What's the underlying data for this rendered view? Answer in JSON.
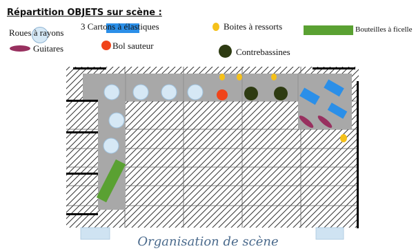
{
  "title": "Répartition OBJETS sur scène :",
  "caption": "Organisation de scène",
  "legend": {
    "roues": "Roues à rayons",
    "cartons": "3 Cartons à élastiques",
    "boites": "Boites à ressorts",
    "bouteilles": "Bouteilles à ficelle",
    "guitares": "Guitares",
    "bol": "Bol sauteur",
    "contrebasses": "Contrebassines"
  },
  "colors": {
    "roue": "#d6e8f5",
    "roue_stroke": "#8fb4d3",
    "carton": "#2b8fe8",
    "boite": "#f5c11a",
    "bouteille": "#5aa132",
    "guitare": "#98305f",
    "bol": "#f0441a",
    "contrebasse": "#2e3b12",
    "zone": "#a8a8a8",
    "hatch": "#333333"
  }
}
